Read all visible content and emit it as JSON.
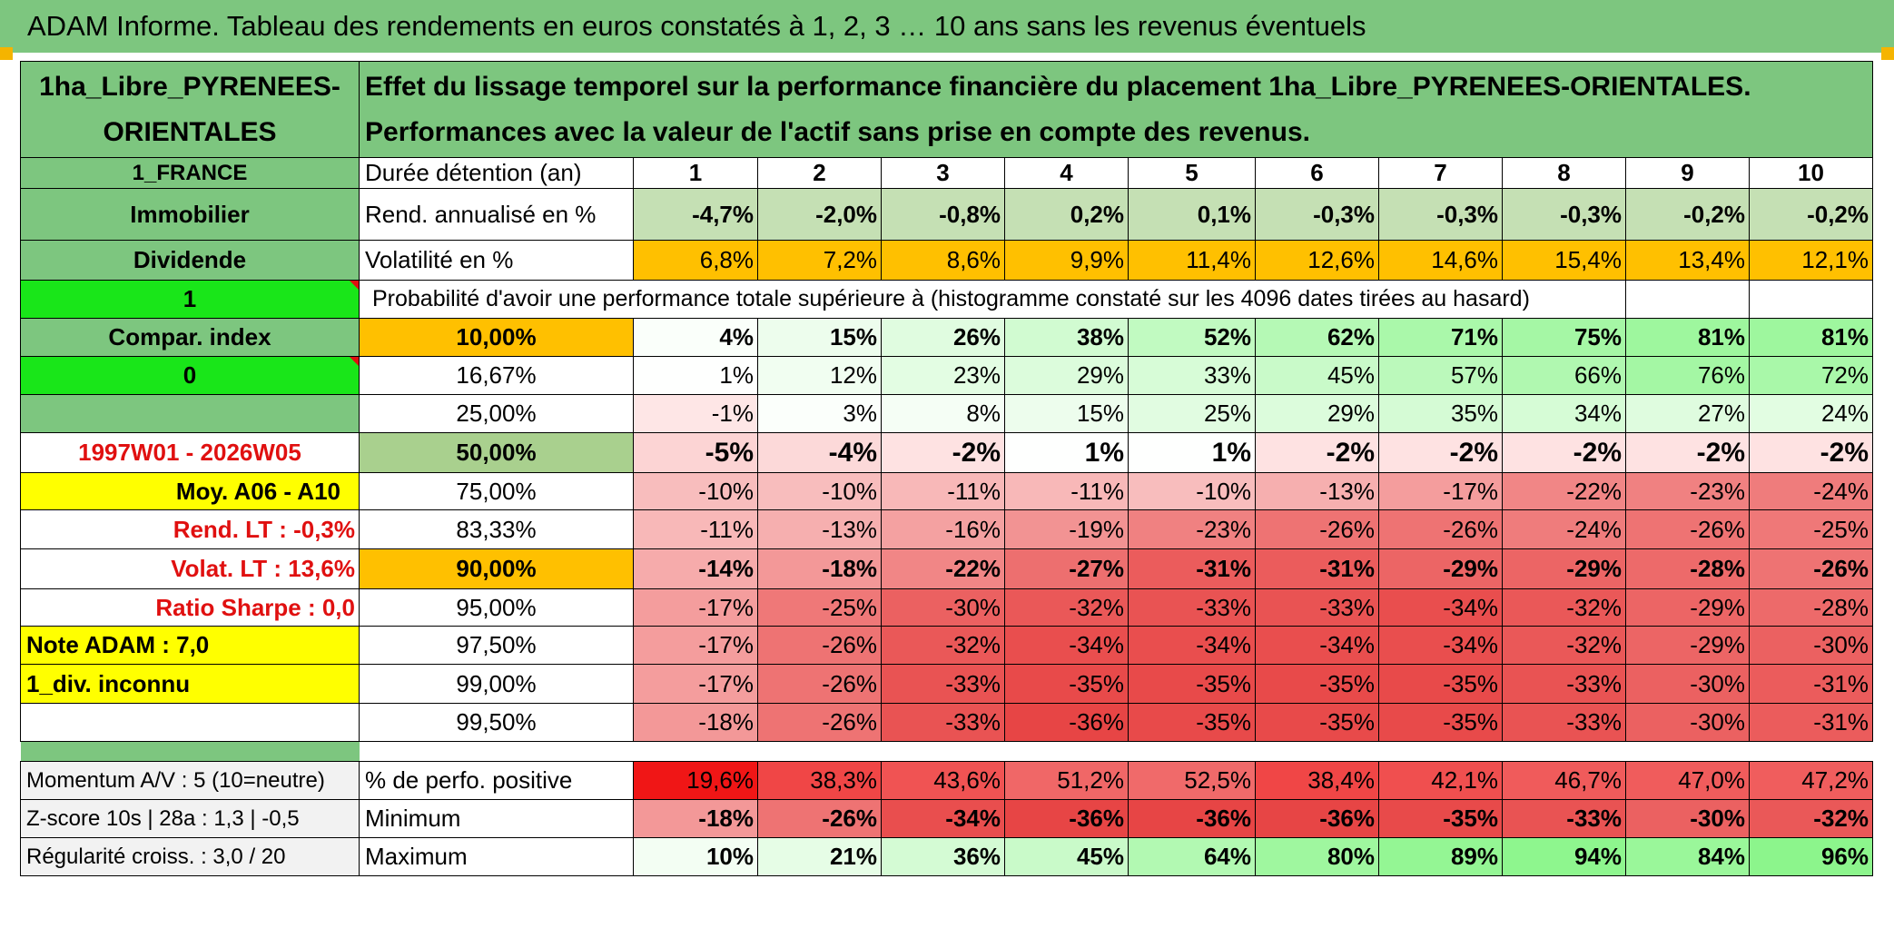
{
  "title": "ADAM Informe. Tableau des rendements en euros constatés à 1, 2, 3 … 10 ans sans les revenus éventuels",
  "header": {
    "asset_name": "1ha_Libre_PYRENEES-ORIENTALES",
    "description": "Effet du lissage temporel sur la performance financière du placement 1ha_Libre_PYRENEES-ORIENTALES. Performances avec la valeur de l'actif sans prise en compte des revenus."
  },
  "left": {
    "country": "1_FRANCE",
    "category": "Immobilier",
    "dividend": "Dividende",
    "input1": "1",
    "compar": "Compar. index",
    "input0": "0",
    "period": "1997W01 - 2026W05",
    "moy": "Moy. A06 - A10",
    "rend_lt": "Rend. LT :   -0,3%",
    "volat_lt": "Volat. LT :   13,6%",
    "sharpe": "Ratio Sharpe :    0,0",
    "note": "Note ADAM : 7,0",
    "div": "1_div. inconnu",
    "momentum": "Momentum A/V : 5 (10=neutre)",
    "zscore": "Z-score 10s | 28a : 1,3 | -0,5",
    "regularite": "Régularité croiss. : 3,0 / 20"
  },
  "labels": {
    "duree": "Durée détention (an)",
    "rend": "Rend. annualisé en %",
    "volat": "Volatilité en %",
    "proba": "Probabilité d'avoir une performance totale supérieure à (histogramme constaté sur les 4096 dates tirées au hasard)",
    "pct_pos": "% de perfo. positive",
    "minimum": "Minimum",
    "maximum": "Maximum"
  },
  "years": [
    "1",
    "2",
    "3",
    "4",
    "5",
    "6",
    "7",
    "8",
    "9",
    "10"
  ],
  "rend": [
    "-4,7%",
    "-2,0%",
    "-0,8%",
    "0,2%",
    "0,1%",
    "-0,3%",
    "-0,3%",
    "-0,3%",
    "-0,2%",
    "-0,2%"
  ],
  "volat": [
    "6,8%",
    "7,2%",
    "8,6%",
    "9,9%",
    "11,4%",
    "12,6%",
    "14,6%",
    "15,4%",
    "13,4%",
    "12,1%"
  ],
  "proba_rows": [
    {
      "label": "10,00%",
      "values": [
        "4%",
        "15%",
        "26%",
        "38%",
        "52%",
        "62%",
        "71%",
        "75%",
        "81%",
        "81%"
      ]
    },
    {
      "label": "16,67%",
      "values": [
        "1%",
        "12%",
        "23%",
        "29%",
        "33%",
        "45%",
        "57%",
        "66%",
        "76%",
        "72%"
      ]
    },
    {
      "label": "25,00%",
      "values": [
        "-1%",
        "3%",
        "8%",
        "15%",
        "25%",
        "29%",
        "35%",
        "34%",
        "27%",
        "24%"
      ]
    },
    {
      "label": "50,00%",
      "values": [
        "-5%",
        "-4%",
        "-2%",
        "1%",
        "1%",
        "-2%",
        "-2%",
        "-2%",
        "-2%",
        "-2%"
      ]
    },
    {
      "label": "75,00%",
      "values": [
        "-10%",
        "-10%",
        "-11%",
        "-11%",
        "-10%",
        "-13%",
        "-17%",
        "-22%",
        "-23%",
        "-24%"
      ]
    },
    {
      "label": "83,33%",
      "values": [
        "-11%",
        "-13%",
        "-16%",
        "-19%",
        "-23%",
        "-26%",
        "-26%",
        "-24%",
        "-26%",
        "-25%"
      ]
    },
    {
      "label": "90,00%",
      "values": [
        "-14%",
        "-18%",
        "-22%",
        "-27%",
        "-31%",
        "-31%",
        "-29%",
        "-29%",
        "-28%",
        "-26%"
      ]
    },
    {
      "label": "95,00%",
      "values": [
        "-17%",
        "-25%",
        "-30%",
        "-32%",
        "-33%",
        "-33%",
        "-34%",
        "-32%",
        "-29%",
        "-28%"
      ]
    },
    {
      "label": "97,50%",
      "values": [
        "-17%",
        "-26%",
        "-32%",
        "-34%",
        "-34%",
        "-34%",
        "-34%",
        "-32%",
        "-29%",
        "-30%"
      ]
    },
    {
      "label": "99,00%",
      "values": [
        "-17%",
        "-26%",
        "-33%",
        "-35%",
        "-35%",
        "-35%",
        "-35%",
        "-33%",
        "-30%",
        "-31%"
      ]
    },
    {
      "label": "99,50%",
      "values": [
        "-18%",
        "-26%",
        "-33%",
        "-36%",
        "-35%",
        "-35%",
        "-35%",
        "-33%",
        "-30%",
        "-31%"
      ]
    }
  ],
  "pct_pos": [
    "19,6%",
    "38,3%",
    "43,6%",
    "51,2%",
    "52,5%",
    "38,4%",
    "42,1%",
    "46,7%",
    "47,0%",
    "47,2%"
  ],
  "minimum": [
    "-18%",
    "-26%",
    "-34%",
    "-36%",
    "-36%",
    "-36%",
    "-35%",
    "-33%",
    "-30%",
    "-32%"
  ],
  "maximum": [
    "10%",
    "21%",
    "36%",
    "45%",
    "64%",
    "80%",
    "89%",
    "94%",
    "84%",
    "96%"
  ],
  "colors": {
    "header_green": "#7dc67f",
    "bright_green": "#19e619",
    "yellow": "#ffff00",
    "orange": "#ffc000",
    "red_text": "#e01010"
  }
}
